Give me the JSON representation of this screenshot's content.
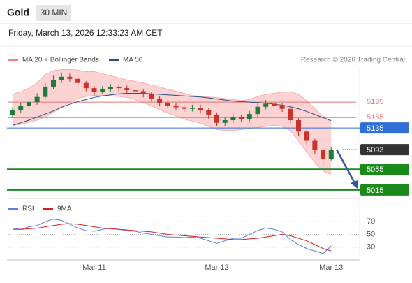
{
  "instrument": "Gold",
  "timeframe": "30 MIN",
  "timestamp": "Friday, March 13, 2026 12:33:23 AM CET",
  "chart_data": {
    "type": "candlestick",
    "legend": [
      {
        "name": "MA 20 + Bollinger Bands",
        "color": "#f08080"
      },
      {
        "name": "MA 50",
        "color": "#2b4d8c"
      }
    ],
    "source": "Research © 2026 Trading Central",
    "categories": [
      null,
      null,
      null,
      null,
      null,
      null,
      null,
      null,
      null,
      null,
      "Mar 11",
      null,
      null,
      null,
      null,
      null,
      null,
      null,
      null,
      null,
      null,
      null,
      null,
      null,
      null,
      "Mar 12",
      null,
      null,
      null,
      null,
      null,
      null,
      null,
      null,
      null,
      null,
      null,
      null,
      null,
      "Mar 13"
    ],
    "open": [
      5160,
      5170,
      5178,
      5185,
      5195,
      5215,
      5228,
      5234,
      5230,
      5222,
      5212,
      5205,
      5210,
      5214,
      5212,
      5208,
      5206,
      5200,
      5192,
      5184,
      5178,
      5175,
      5172,
      5174,
      5170,
      5160,
      5145,
      5150,
      5156,
      5152,
      5162,
      5176,
      5182,
      5178,
      5172,
      5150,
      5128,
      5110,
      5092,
      5075
    ],
    "high": [
      5176,
      5184,
      5192,
      5202,
      5222,
      5236,
      5242,
      5240,
      5235,
      5226,
      5216,
      5216,
      5220,
      5219,
      5217,
      5213,
      5211,
      5205,
      5197,
      5190,
      5184,
      5180,
      5180,
      5180,
      5174,
      5165,
      5156,
      5162,
      5161,
      5168,
      5182,
      5189,
      5186,
      5183,
      5175,
      5154,
      5132,
      5114,
      5096,
      5098
    ],
    "low": [
      5154,
      5165,
      5172,
      5180,
      5190,
      5210,
      5222,
      5224,
      5216,
      5206,
      5198,
      5200,
      5204,
      5206,
      5202,
      5199,
      5194,
      5186,
      5178,
      5172,
      5169,
      5166,
      5167,
      5163,
      5152,
      5138,
      5139,
      5145,
      5146,
      5148,
      5157,
      5171,
      5172,
      5166,
      5144,
      5120,
      5103,
      5085,
      5062,
      5072
    ],
    "close": [
      5170,
      5178,
      5185,
      5195,
      5215,
      5228,
      5234,
      5230,
      5222,
      5212,
      5205,
      5210,
      5214,
      5212,
      5208,
      5206,
      5200,
      5192,
      5184,
      5178,
      5175,
      5172,
      5174,
      5170,
      5160,
      5145,
      5150,
      5156,
      5152,
      5162,
      5176,
      5182,
      5178,
      5172,
      5150,
      5128,
      5110,
      5092,
      5075,
      5093
    ],
    "up_color": "#1e7b3c",
    "down_color": "#c8332b",
    "ma50": [
      5140,
      5145,
      5150,
      5156,
      5162,
      5168,
      5175,
      5181,
      5186,
      5190,
      5194,
      5197,
      5199,
      5201,
      5202,
      5202,
      5202,
      5201,
      5200,
      5199,
      5198,
      5197,
      5196,
      5195,
      5193,
      5191,
      5189,
      5187,
      5186,
      5185,
      5184,
      5183,
      5181,
      5179,
      5176,
      5172,
      5167,
      5161,
      5155,
      5149
    ],
    "band_upper": [
      5200,
      5205,
      5212,
      5222,
      5238,
      5246,
      5248,
      5248,
      5247,
      5244,
      5244,
      5240,
      5236,
      5232,
      5228,
      5225,
      5222,
      5218,
      5214,
      5210,
      5206,
      5202,
      5198,
      5196,
      5195,
      5194,
      5192,
      5190,
      5188,
      5190,
      5196,
      5200,
      5202,
      5204,
      5205,
      5200,
      5188,
      5172,
      5158,
      5145
    ],
    "band_lower": [
      5140,
      5142,
      5146,
      5150,
      5156,
      5165,
      5175,
      5185,
      5192,
      5196,
      5198,
      5198,
      5197,
      5196,
      5194,
      5190,
      5184,
      5178,
      5170,
      5164,
      5158,
      5152,
      5148,
      5144,
      5138,
      5132,
      5130,
      5130,
      5132,
      5134,
      5136,
      5138,
      5140,
      5138,
      5130,
      5110,
      5088,
      5068,
      5052,
      5045
    ],
    "band_color": "#fbd3d3",
    "ylim": [
      5000,
      5250
    ],
    "levels": [
      {
        "value": 5185,
        "color": "#e57373",
        "style": "thin"
      },
      {
        "value": 5155,
        "color": "#e57373",
        "style": "thin"
      },
      {
        "value": 5135,
        "color": "#2f6fd6",
        "style": "boxed"
      },
      {
        "value": 5093,
        "color": "#333333",
        "style": "dotted"
      },
      {
        "value": 5055,
        "color": "#1a8a1a",
        "style": "thick"
      },
      {
        "value": 5015,
        "color": "#1a8a1a",
        "style": "thick"
      }
    ],
    "rsi": {
      "ylim": [
        10,
        100
      ],
      "yticks": [
        30,
        50,
        70
      ],
      "series": [
        {
          "name": "RSI",
          "color": "#5b7fd6",
          "values": [
            60,
            58,
            62,
            64,
            70,
            74,
            72,
            66,
            60,
            56,
            55,
            58,
            60,
            58,
            56,
            55,
            52,
            50,
            48,
            46,
            46,
            45,
            46,
            44,
            40,
            36,
            40,
            44,
            44,
            50,
            56,
            60,
            58,
            54,
            42,
            34,
            28,
            24,
            20,
            32
          ]
        },
        {
          "name": "9MA",
          "color": "#d91e1e",
          "values": [
            58,
            58,
            59,
            60,
            62,
            64,
            66,
            67,
            66,
            64,
            62,
            60,
            59,
            58,
            57,
            56,
            55,
            54,
            52,
            50,
            49,
            48,
            47,
            46,
            45,
            44,
            43,
            42,
            42,
            43,
            44,
            46,
            48,
            50,
            48,
            44,
            40,
            34,
            28,
            24
          ]
        }
      ]
    }
  }
}
